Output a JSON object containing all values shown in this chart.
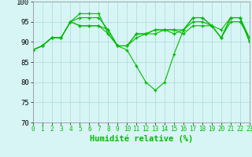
{
  "xlabel": "Humidité relative (%)",
  "bg_color": "#d8f5f5",
  "grid_color": "#b0dede",
  "line_color": "#00bb00",
  "xlim": [
    0,
    23
  ],
  "ylim": [
    70,
    100
  ],
  "yticks": [
    70,
    75,
    80,
    85,
    90,
    95,
    100
  ],
  "lines": [
    [
      88,
      89,
      91,
      91,
      95,
      97,
      97,
      97,
      92,
      89,
      88,
      84,
      80,
      78,
      80,
      87,
      93,
      96,
      96,
      94,
      93,
      96,
      96,
      90
    ],
    [
      88,
      89,
      91,
      91,
      95,
      96,
      96,
      96,
      93,
      89,
      89,
      91,
      92,
      92,
      93,
      92,
      93,
      96,
      96,
      94,
      91,
      96,
      96,
      91
    ],
    [
      88,
      89,
      91,
      91,
      95,
      94,
      94,
      94,
      93,
      89,
      89,
      92,
      92,
      93,
      93,
      93,
      93,
      95,
      95,
      94,
      91,
      95,
      95,
      91
    ],
    [
      88,
      89,
      91,
      91,
      95,
      94,
      94,
      94,
      92,
      89,
      89,
      92,
      92,
      93,
      93,
      93,
      92,
      94,
      94,
      94,
      91,
      96,
      96,
      90
    ]
  ]
}
